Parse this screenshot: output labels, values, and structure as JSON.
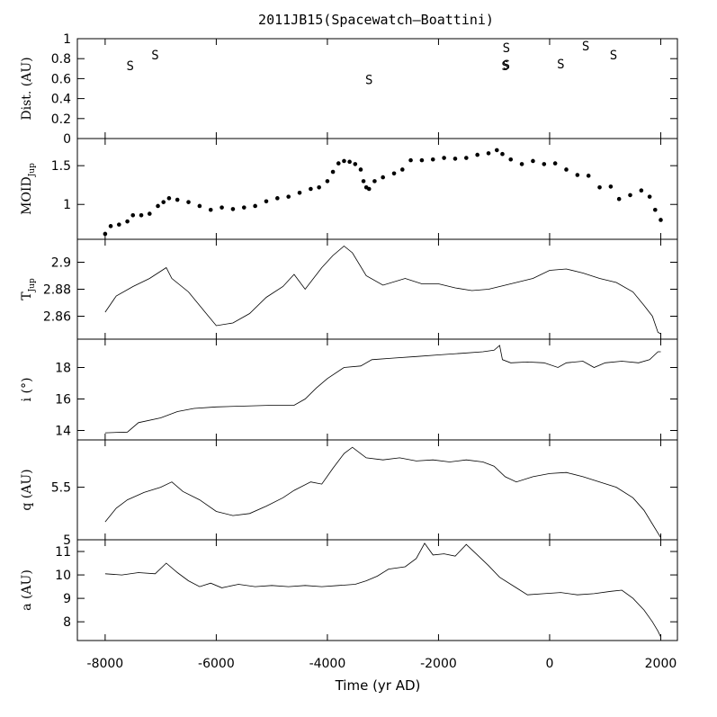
{
  "chart_data": {
    "type": "line",
    "title": "2011JB15(Spacewatch–Boattini)",
    "xlabel": "Time (yr AD)",
    "xlim": [
      -8500,
      2300
    ],
    "x_ticks": [
      -8000,
      -6000,
      -4000,
      -2000,
      0,
      2000
    ],
    "x_tick_labels": [
      "-8000",
      "-6000",
      "-4000",
      "-2000",
      "0",
      "2000"
    ],
    "panels": [
      {
        "id": "dist",
        "ylabel": "Dist. (AU)",
        "ylabel_main": "Dist. (AU)",
        "ylabel_sub": "",
        "ylim": [
          0,
          1
        ],
        "y_ticks": [
          0,
          0.2,
          0.4,
          0.6,
          0.8,
          1
        ],
        "y_tick_labels": [
          "0",
          "0.2",
          "0.4",
          "0.6",
          "0.8",
          "1"
        ],
        "marker": "S",
        "points": [
          {
            "x": -7550,
            "y": 0.73
          },
          {
            "x": -7100,
            "y": 0.84
          },
          {
            "x": -3250,
            "y": 0.59
          },
          {
            "x": -800,
            "y": 0.73
          },
          {
            "x": -780,
            "y": 0.74
          },
          {
            "x": -780,
            "y": 0.91
          },
          {
            "x": 200,
            "y": 0.75
          },
          {
            "x": 650,
            "y": 0.93
          },
          {
            "x": 1150,
            "y": 0.84
          }
        ]
      },
      {
        "id": "moid",
        "ylabel": "MOID Jup",
        "ylabel_main": "MOID",
        "ylabel_sub": "Jup",
        "ylim": [
          0.55,
          1.85
        ],
        "y_ticks": [
          1,
          1.5
        ],
        "y_tick_labels": [
          "1",
          "1.5"
        ],
        "marker": "dot",
        "points": [
          [
            -8000,
            0.62
          ],
          [
            -7900,
            0.72
          ],
          [
            -7750,
            0.74
          ],
          [
            -7600,
            0.78
          ],
          [
            -7500,
            0.86
          ],
          [
            -7350,
            0.86
          ],
          [
            -7200,
            0.88
          ],
          [
            -7050,
            0.98
          ],
          [
            -6950,
            1.03
          ],
          [
            -6850,
            1.08
          ],
          [
            -6700,
            1.06
          ],
          [
            -6500,
            1.03
          ],
          [
            -6300,
            0.98
          ],
          [
            -6100,
            0.93
          ],
          [
            -5900,
            0.96
          ],
          [
            -5700,
            0.94
          ],
          [
            -5500,
            0.96
          ],
          [
            -5300,
            0.98
          ],
          [
            -5100,
            1.04
          ],
          [
            -4900,
            1.08
          ],
          [
            -4700,
            1.1
          ],
          [
            -4500,
            1.15
          ],
          [
            -4300,
            1.2
          ],
          [
            -4150,
            1.22
          ],
          [
            -4000,
            1.3
          ],
          [
            -3900,
            1.42
          ],
          [
            -3800,
            1.53
          ],
          [
            -3700,
            1.56
          ],
          [
            -3600,
            1.55
          ],
          [
            -3500,
            1.52
          ],
          [
            -3400,
            1.45
          ],
          [
            -3350,
            1.3
          ],
          [
            -3300,
            1.22
          ],
          [
            -3250,
            1.2
          ],
          [
            -3150,
            1.3
          ],
          [
            -3000,
            1.35
          ],
          [
            -2800,
            1.4
          ],
          [
            -2650,
            1.45
          ],
          [
            -2500,
            1.57
          ],
          [
            -2300,
            1.57
          ],
          [
            -2100,
            1.58
          ],
          [
            -1900,
            1.6
          ],
          [
            -1700,
            1.59
          ],
          [
            -1500,
            1.6
          ],
          [
            -1300,
            1.64
          ],
          [
            -1100,
            1.66
          ],
          [
            -950,
            1.7
          ],
          [
            -850,
            1.65
          ],
          [
            -700,
            1.58
          ],
          [
            -500,
            1.52
          ],
          [
            -300,
            1.56
          ],
          [
            -100,
            1.52
          ],
          [
            100,
            1.53
          ],
          [
            300,
            1.45
          ],
          [
            500,
            1.38
          ],
          [
            700,
            1.37
          ],
          [
            900,
            1.22
          ],
          [
            1100,
            1.23
          ],
          [
            1250,
            1.07
          ],
          [
            1450,
            1.12
          ],
          [
            1650,
            1.18
          ],
          [
            1800,
            1.1
          ],
          [
            1900,
            0.93
          ],
          [
            2000,
            0.8
          ]
        ]
      },
      {
        "id": "tjup",
        "ylabel": "T Jup",
        "ylabel_main": "T",
        "ylabel_sub": "Jup",
        "ylim": [
          2.843,
          2.917
        ],
        "y_ticks": [
          2.86,
          2.88,
          2.9
        ],
        "y_tick_labels": [
          "2.86",
          "2.88",
          "2.9"
        ],
        "marker": "line",
        "points": [
          [
            -8000,
            2.863
          ],
          [
            -7800,
            2.875
          ],
          [
            -7500,
            2.882
          ],
          [
            -7200,
            2.888
          ],
          [
            -6900,
            2.896
          ],
          [
            -6800,
            2.888
          ],
          [
            -6500,
            2.878
          ],
          [
            -6200,
            2.863
          ],
          [
            -6000,
            2.853
          ],
          [
            -5700,
            2.855
          ],
          [
            -5400,
            2.862
          ],
          [
            -5100,
            2.874
          ],
          [
            -4800,
            2.882
          ],
          [
            -4600,
            2.891
          ],
          [
            -4400,
            2.88
          ],
          [
            -4100,
            2.896
          ],
          [
            -3900,
            2.905
          ],
          [
            -3700,
            2.912
          ],
          [
            -3550,
            2.907
          ],
          [
            -3300,
            2.89
          ],
          [
            -3000,
            2.883
          ],
          [
            -2600,
            2.888
          ],
          [
            -2300,
            2.884
          ],
          [
            -2000,
            2.884
          ],
          [
            -1700,
            2.881
          ],
          [
            -1400,
            2.879
          ],
          [
            -1100,
            2.88
          ],
          [
            -900,
            2.882
          ],
          [
            -600,
            2.885
          ],
          [
            -300,
            2.888
          ],
          [
            0,
            2.894
          ],
          [
            300,
            2.895
          ],
          [
            600,
            2.892
          ],
          [
            900,
            2.888
          ],
          [
            1200,
            2.885
          ],
          [
            1500,
            2.878
          ],
          [
            1700,
            2.868
          ],
          [
            1850,
            2.86
          ],
          [
            1950,
            2.848
          ],
          [
            2000,
            2.847
          ]
        ]
      },
      {
        "id": "inc",
        "ylabel": "i (°)",
        "ylabel_main": "i (°)",
        "ylabel_sub": "",
        "ylim": [
          13.4,
          19.8
        ],
        "y_ticks": [
          14,
          16,
          18
        ],
        "y_tick_labels": [
          "14",
          "16",
          "18"
        ],
        "marker": "line",
        "points": [
          [
            -8000,
            13.85
          ],
          [
            -7600,
            13.9
          ],
          [
            -7400,
            14.5
          ],
          [
            -7000,
            14.8
          ],
          [
            -6700,
            15.2
          ],
          [
            -6400,
            15.4
          ],
          [
            -6000,
            15.5
          ],
          [
            -5500,
            15.55
          ],
          [
            -5000,
            15.6
          ],
          [
            -4600,
            15.6
          ],
          [
            -4400,
            16.0
          ],
          [
            -4200,
            16.7
          ],
          [
            -4000,
            17.3
          ],
          [
            -3700,
            18.0
          ],
          [
            -3400,
            18.1
          ],
          [
            -3200,
            18.5
          ],
          [
            -2800,
            18.6
          ],
          [
            -2400,
            18.7
          ],
          [
            -2000,
            18.8
          ],
          [
            -1600,
            18.9
          ],
          [
            -1200,
            19.0
          ],
          [
            -1000,
            19.1
          ],
          [
            -900,
            19.4
          ],
          [
            -850,
            18.5
          ],
          [
            -700,
            18.3
          ],
          [
            -400,
            18.35
          ],
          [
            -100,
            18.3
          ],
          [
            150,
            18.0
          ],
          [
            300,
            18.3
          ],
          [
            600,
            18.4
          ],
          [
            800,
            18.0
          ],
          [
            1000,
            18.3
          ],
          [
            1300,
            18.4
          ],
          [
            1600,
            18.3
          ],
          [
            1800,
            18.5
          ],
          [
            1950,
            19.0
          ],
          [
            2000,
            19.0
          ]
        ]
      },
      {
        "id": "q",
        "ylabel": "q (AU)",
        "ylabel_main": "q (AU)",
        "ylabel_sub": "",
        "ylim": [
          5.0,
          5.95
        ],
        "y_ticks": [
          5,
          5.5
        ],
        "y_tick_labels": [
          "5",
          "5.5"
        ],
        "marker": "line",
        "points": [
          [
            -8000,
            5.17
          ],
          [
            -7800,
            5.3
          ],
          [
            -7600,
            5.38
          ],
          [
            -7300,
            5.45
          ],
          [
            -7000,
            5.5
          ],
          [
            -6800,
            5.55
          ],
          [
            -6600,
            5.46
          ],
          [
            -6300,
            5.38
          ],
          [
            -6000,
            5.27
          ],
          [
            -5700,
            5.23
          ],
          [
            -5400,
            5.25
          ],
          [
            -5100,
            5.32
          ],
          [
            -4800,
            5.4
          ],
          [
            -4600,
            5.47
          ],
          [
            -4300,
            5.55
          ],
          [
            -4100,
            5.53
          ],
          [
            -3900,
            5.68
          ],
          [
            -3700,
            5.82
          ],
          [
            -3550,
            5.88
          ],
          [
            -3300,
            5.78
          ],
          [
            -3000,
            5.76
          ],
          [
            -2700,
            5.78
          ],
          [
            -2400,
            5.75
          ],
          [
            -2100,
            5.76
          ],
          [
            -1800,
            5.74
          ],
          [
            -1500,
            5.76
          ],
          [
            -1200,
            5.74
          ],
          [
            -1000,
            5.7
          ],
          [
            -800,
            5.6
          ],
          [
            -600,
            5.55
          ],
          [
            -300,
            5.6
          ],
          [
            0,
            5.63
          ],
          [
            300,
            5.64
          ],
          [
            600,
            5.6
          ],
          [
            900,
            5.55
          ],
          [
            1200,
            5.5
          ],
          [
            1500,
            5.4
          ],
          [
            1700,
            5.28
          ],
          [
            1850,
            5.15
          ],
          [
            2000,
            5.02
          ]
        ]
      },
      {
        "id": "a",
        "ylabel": "a (AU)",
        "ylabel_main": "a (AU)",
        "ylabel_sub": "",
        "ylim": [
          7.2,
          11.5
        ],
        "y_ticks": [
          8,
          9,
          10,
          11
        ],
        "y_tick_labels": [
          "8",
          "9",
          "10",
          "11"
        ],
        "marker": "line",
        "points": [
          [
            -8000,
            10.05
          ],
          [
            -7700,
            10.0
          ],
          [
            -7400,
            10.1
          ],
          [
            -7100,
            10.05
          ],
          [
            -6900,
            10.5
          ],
          [
            -6700,
            10.1
          ],
          [
            -6500,
            9.75
          ],
          [
            -6300,
            9.5
          ],
          [
            -6100,
            9.65
          ],
          [
            -5900,
            9.45
          ],
          [
            -5600,
            9.6
          ],
          [
            -5300,
            9.5
          ],
          [
            -5000,
            9.55
          ],
          [
            -4700,
            9.5
          ],
          [
            -4400,
            9.55
          ],
          [
            -4100,
            9.5
          ],
          [
            -3800,
            9.55
          ],
          [
            -3500,
            9.6
          ],
          [
            -3300,
            9.75
          ],
          [
            -3100,
            9.95
          ],
          [
            -2900,
            10.25
          ],
          [
            -2600,
            10.35
          ],
          [
            -2400,
            10.7
          ],
          [
            -2250,
            11.35
          ],
          [
            -2100,
            10.85
          ],
          [
            -1900,
            10.9
          ],
          [
            -1700,
            10.8
          ],
          [
            -1500,
            11.3
          ],
          [
            -1300,
            10.85
          ],
          [
            -1100,
            10.4
          ],
          [
            -900,
            9.9
          ],
          [
            -600,
            9.45
          ],
          [
            -400,
            9.15
          ],
          [
            -100,
            9.2
          ],
          [
            200,
            9.25
          ],
          [
            500,
            9.15
          ],
          [
            800,
            9.2
          ],
          [
            1100,
            9.3
          ],
          [
            1300,
            9.35
          ],
          [
            1500,
            9.0
          ],
          [
            1700,
            8.5
          ],
          [
            1850,
            8.0
          ],
          [
            1950,
            7.6
          ],
          [
            2000,
            7.35
          ]
        ]
      }
    ]
  }
}
